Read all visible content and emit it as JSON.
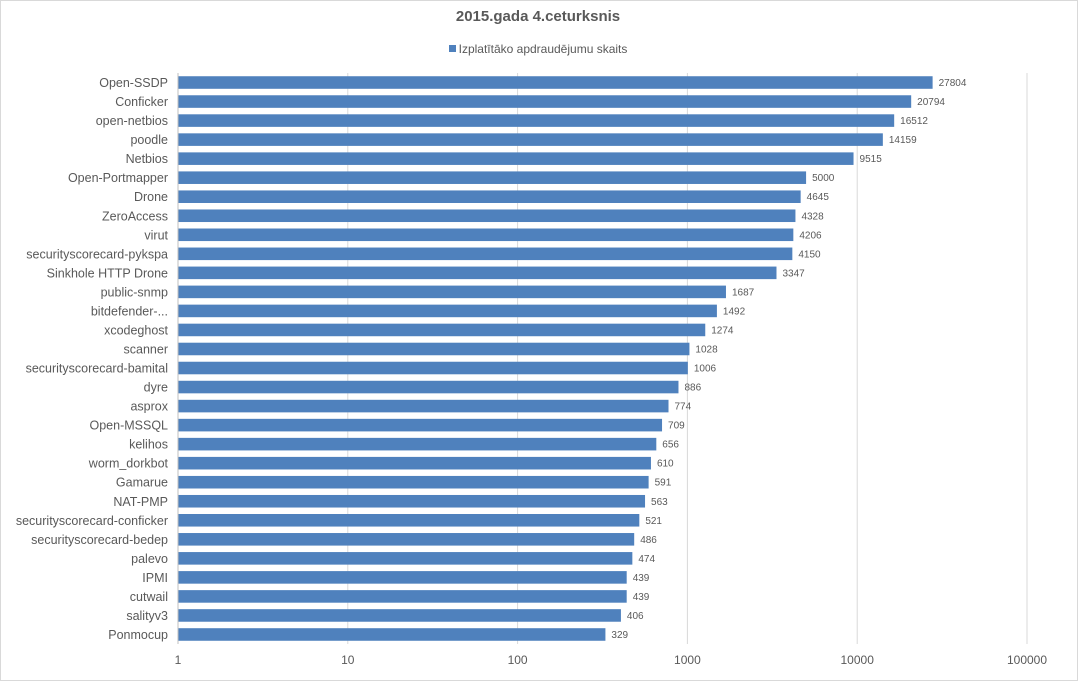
{
  "chart_data": {
    "type": "bar",
    "orientation": "horizontal",
    "title": "2015.gada 4.ceturksnis",
    "legend_position": "top",
    "x_scale": "log",
    "xlim": [
      1,
      100000
    ],
    "x_ticks": [
      "1",
      "10",
      "100",
      "1000",
      "10000",
      "100000"
    ],
    "grid": true,
    "bar_color": "#4f81bd",
    "categories": [
      "Open-SSDP",
      "Conficker",
      "open-netbios",
      "poodle",
      "Netbios",
      "Open-Portmapper",
      "Drone",
      "ZeroAccess",
      "virut",
      "securityscorecard-pykspa",
      "Sinkhole HTTP Drone",
      "public-snmp",
      "bitdefender-...",
      "xcodeghost",
      "scanner",
      "securityscorecard-bamital",
      "dyre",
      "asprox",
      "Open-MSSQL",
      "kelihos",
      "worm_dorkbot",
      "Gamarue",
      "NAT-PMP",
      "securityscorecard-conficker",
      "securityscorecard-bedep",
      "palevo",
      "IPMI",
      "cutwail",
      "salityv3",
      "Ponmocup"
    ],
    "series": [
      {
        "name": "Izplatītāko apdraudējumu skaits",
        "values": [
          27804,
          20794,
          16512,
          14159,
          9515,
          5000,
          4645,
          4328,
          4206,
          4150,
          3347,
          1687,
          1492,
          1274,
          1028,
          1006,
          886,
          774,
          709,
          656,
          610,
          591,
          563,
          521,
          486,
          474,
          439,
          439,
          406,
          329
        ]
      }
    ]
  }
}
